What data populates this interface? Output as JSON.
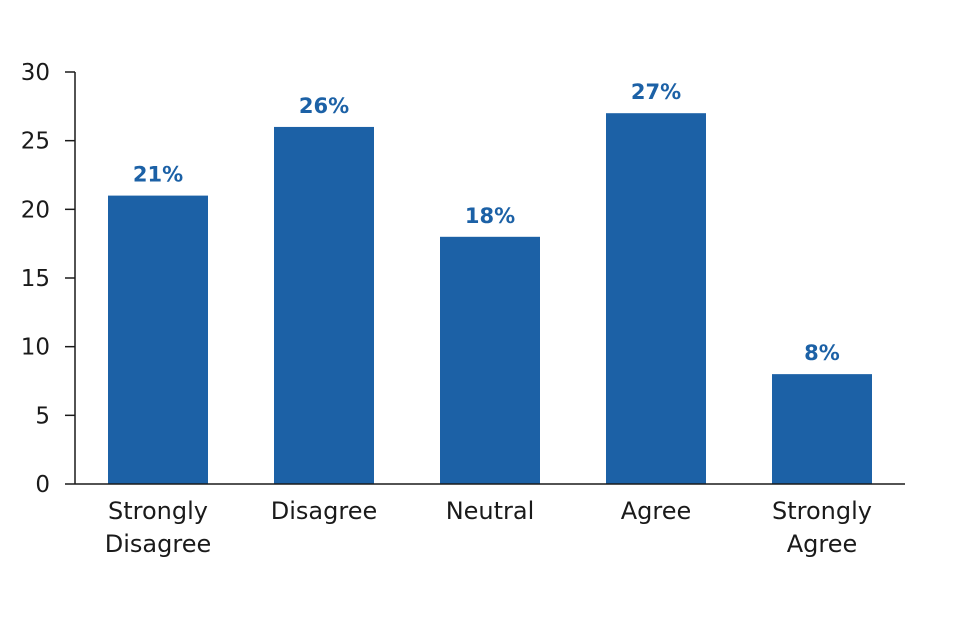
{
  "chart_data": {
    "type": "bar",
    "categories": [
      [
        "Strongly",
        "Disagree"
      ],
      [
        "Disagree"
      ],
      [
        "Neutral"
      ],
      [
        "Agree"
      ],
      [
        "Strongly",
        "Agree"
      ]
    ],
    "values": [
      21,
      26,
      18,
      27,
      8
    ],
    "data_labels": [
      "21%",
      "26%",
      "18%",
      "27%",
      "8%"
    ],
    "title": "",
    "xlabel": "",
    "ylabel": "",
    "ylim": [
      0,
      30
    ],
    "yticks": [
      "0",
      "5",
      "10",
      "15",
      "20",
      "25",
      "30"
    ],
    "grid": false,
    "legend": "none",
    "colors": {
      "bar": "#1c61a6",
      "data_label": "#1c61a6",
      "axis": "#1a1a1a"
    }
  }
}
